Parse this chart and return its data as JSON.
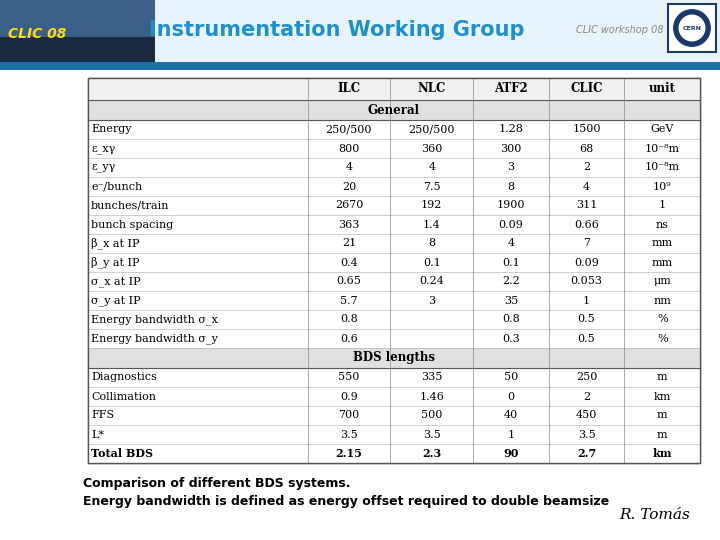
{
  "title": "Instrumentation Working Group",
  "subtitle": "CLIC workshop 08",
  "slide_label": "CLIC 08",
  "background_color": "#ffffff",
  "table_headers": [
    "",
    "ILC",
    "NLC",
    "ATF2",
    "CLIC",
    "unit"
  ],
  "section_general": "General",
  "section_bds": "BDS lengths",
  "rows": [
    [
      "Energy",
      "250/500",
      "250/500",
      "1.28",
      "1500",
      "GeV"
    ],
    [
      "ε_xγ",
      "800",
      "360",
      "300",
      "68",
      "10⁻⁸m"
    ],
    [
      "ε_yγ",
      "4",
      "4",
      "3",
      "2",
      "10⁻⁸m"
    ],
    [
      "e⁻/bunch",
      "20",
      "7.5",
      "8",
      "4",
      "10⁹"
    ],
    [
      "bunches/train",
      "2670",
      "192",
      "1900",
      "311",
      "1"
    ],
    [
      "bunch spacing",
      "363",
      "1.4",
      "0.09",
      "0.66",
      "ns"
    ],
    [
      "β_x at IP",
      "21",
      "8",
      "4",
      "7",
      "mm"
    ],
    [
      "β_y at IP",
      "0.4",
      "0.1",
      "0.1",
      "0.09",
      "mm"
    ],
    [
      "σ_x at IP",
      "0.65",
      "0.24",
      "2.2",
      "0.053",
      "μm"
    ],
    [
      "σ_y at IP",
      "5.7",
      "3",
      "35",
      "1",
      "nm"
    ],
    [
      "Energy bandwidth σ_x",
      "0.8",
      "",
      "0.8",
      "0.5",
      "%"
    ],
    [
      "Energy bandwidth σ_y",
      "0.6",
      "",
      "0.3",
      "0.5",
      "%"
    ]
  ],
  "rows_bds": [
    [
      "Diagnostics",
      "550",
      "335",
      "50",
      "250",
      "m"
    ],
    [
      "Collimation",
      "0.9",
      "1.46",
      "0",
      "2",
      "km"
    ],
    [
      "FFS",
      "700",
      "500",
      "40",
      "450",
      "m"
    ],
    [
      "L*",
      "3.5",
      "3.5",
      "1",
      "3.5",
      "m"
    ],
    [
      "Total BDS",
      "2.15",
      "2.3",
      "90",
      "2.7",
      "km"
    ]
  ],
  "caption1": "Comparison of different BDS systems.",
  "caption2": "Energy bandwidth is defined as energy offset required to double beamsize",
  "author": "R. Tomás",
  "header_photo_color": "#3a5a7a",
  "header_bg_color": "#e8f4fc",
  "header_stripe_color": "#1e6fa8",
  "title_color": "#1e90d0",
  "subtitle_color": "#888888",
  "logo_border_color": "#1a3a6a",
  "logo_bg_color": "#ffffff",
  "clic08_color": "#ffdd00",
  "table_line_color": "#555555",
  "section_bg": "#e0e0e0",
  "header_row_bg": "#f0f0f0",
  "data_row_bg": "#ffffff",
  "caption_color": "#000000"
}
